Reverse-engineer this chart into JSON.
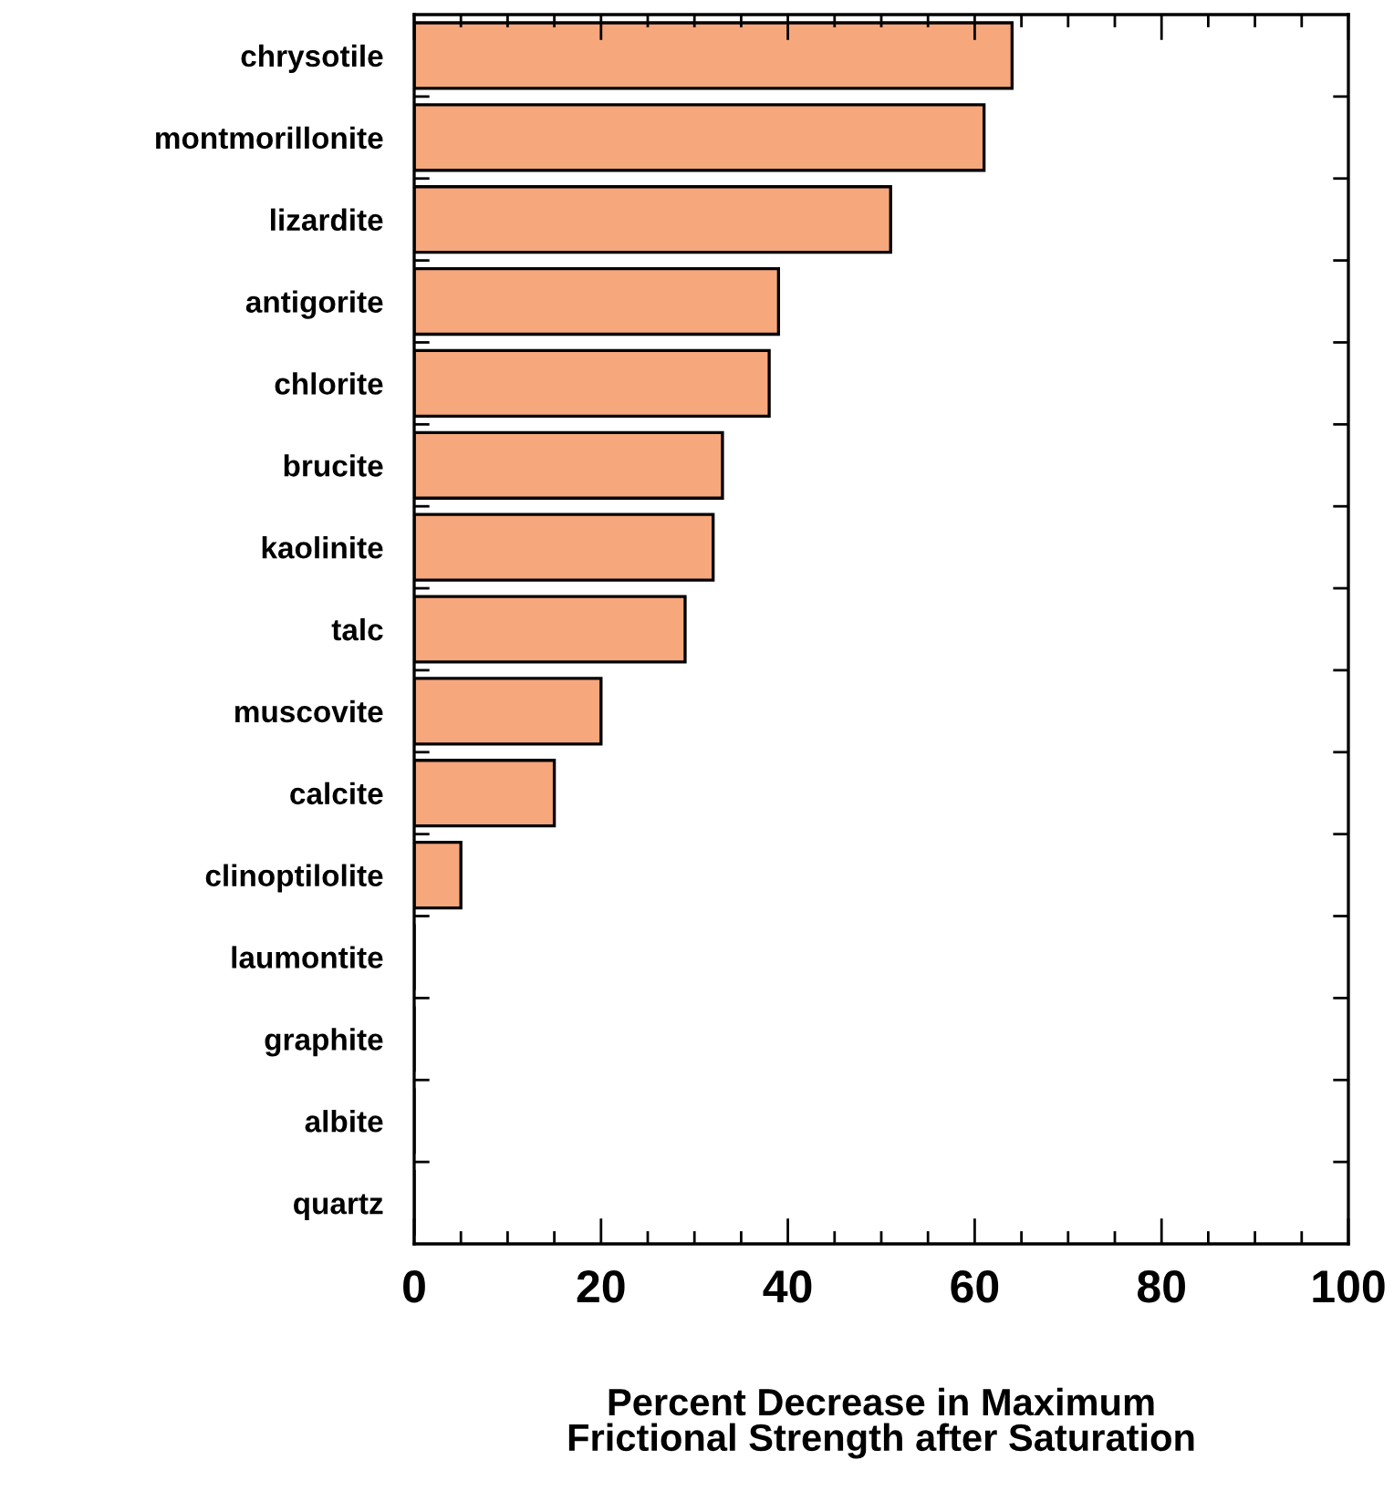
{
  "chart_data": {
    "type": "bar",
    "orientation": "horizontal",
    "xlabel": "Percent Decrease in Maximum\nFrictional Strength after Saturation",
    "categories": [
      "chrysotile",
      "montmorillonite",
      "lizardite",
      "antigorite",
      "chlorite",
      "brucite",
      "kaolinite",
      "talc",
      "muscovite",
      "calcite",
      "clinoptilolite",
      "laumontite",
      "graphite",
      "albite",
      "quartz"
    ],
    "values": [
      64,
      61,
      51,
      39,
      38,
      33,
      32,
      29,
      20,
      15,
      5,
      0,
      0,
      0,
      0
    ],
    "color": "#f6a77c",
    "xlim": [
      0,
      100
    ],
    "xticks": [
      0,
      20,
      40,
      60,
      80,
      100
    ],
    "grid": false
  }
}
